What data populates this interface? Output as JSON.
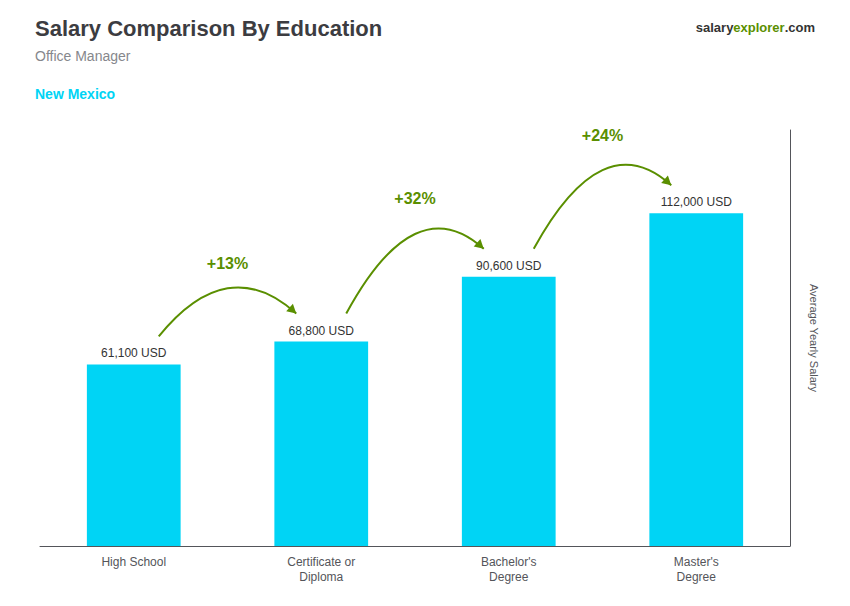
{
  "chart_data": {
    "type": "bar",
    "title": "Salary Comparison By Education",
    "subtitle": "Office Manager",
    "location": "New Mexico",
    "ylabel": "Average Yearly Salary",
    "brand": [
      "salary",
      "explorer",
      ".com"
    ],
    "categories": [
      "High School",
      "Certificate or\nDiploma",
      "Bachelor's\nDegree",
      "Master's\nDegree"
    ],
    "values": [
      61100,
      68800,
      90600,
      112000
    ],
    "value_labels": [
      "61,100 USD",
      "68,800 USD",
      "90,600 USD",
      "112,000 USD"
    ],
    "data_labels": true,
    "annotations": [
      "+13%",
      "+32%",
      "+24%"
    ],
    "color": "#00d4f5",
    "ylim": [
      0,
      140000
    ],
    "tick_labels": "x",
    "grid": false
  }
}
